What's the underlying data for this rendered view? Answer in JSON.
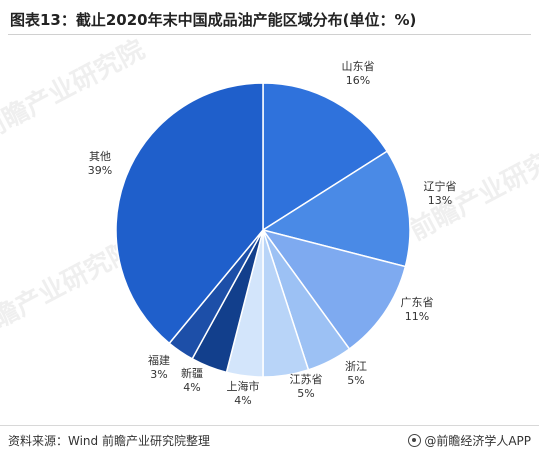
{
  "title": "图表13：截止2020年末中国成品油产能区域分布(单位：%)",
  "source": "资料来源：Wind 前瞻产业研究院整理",
  "brand": "@前瞻经济学人APP",
  "watermark": "前瞻产业研究院",
  "chart_data": {
    "type": "pie",
    "title": "图表13：截止2020年末中国成品油产能区域分布(单位：%)",
    "start_angle_deg": 0,
    "direction": "clockwise",
    "slices": [
      {
        "label": "山东省",
        "value": 16,
        "value_label": "16%",
        "color": "#2f72dc"
      },
      {
        "label": "辽宁省",
        "value": 13,
        "value_label": "13%",
        "color": "#4a8ae6"
      },
      {
        "label": "广东省",
        "value": 11,
        "value_label": "11%",
        "color": "#7eaaf0"
      },
      {
        "label": "浙江",
        "value": 5,
        "value_label": "5%",
        "color": "#9cc1f4"
      },
      {
        "label": "江苏省",
        "value": 5,
        "value_label": "5%",
        "color": "#b8d4f8"
      },
      {
        "label": "上海市",
        "value": 4,
        "value_label": "4%",
        "color": "#d3e5fb"
      },
      {
        "label": "新疆",
        "value": 4,
        "value_label": "4%",
        "color": "#123f8c"
      },
      {
        "label": "福建",
        "value": 3,
        "value_label": "3%",
        "color": "#1d4fa8"
      },
      {
        "label": "其他",
        "value": 39,
        "value_label": "39%",
        "color": "#1f5fcb"
      }
    ]
  }
}
